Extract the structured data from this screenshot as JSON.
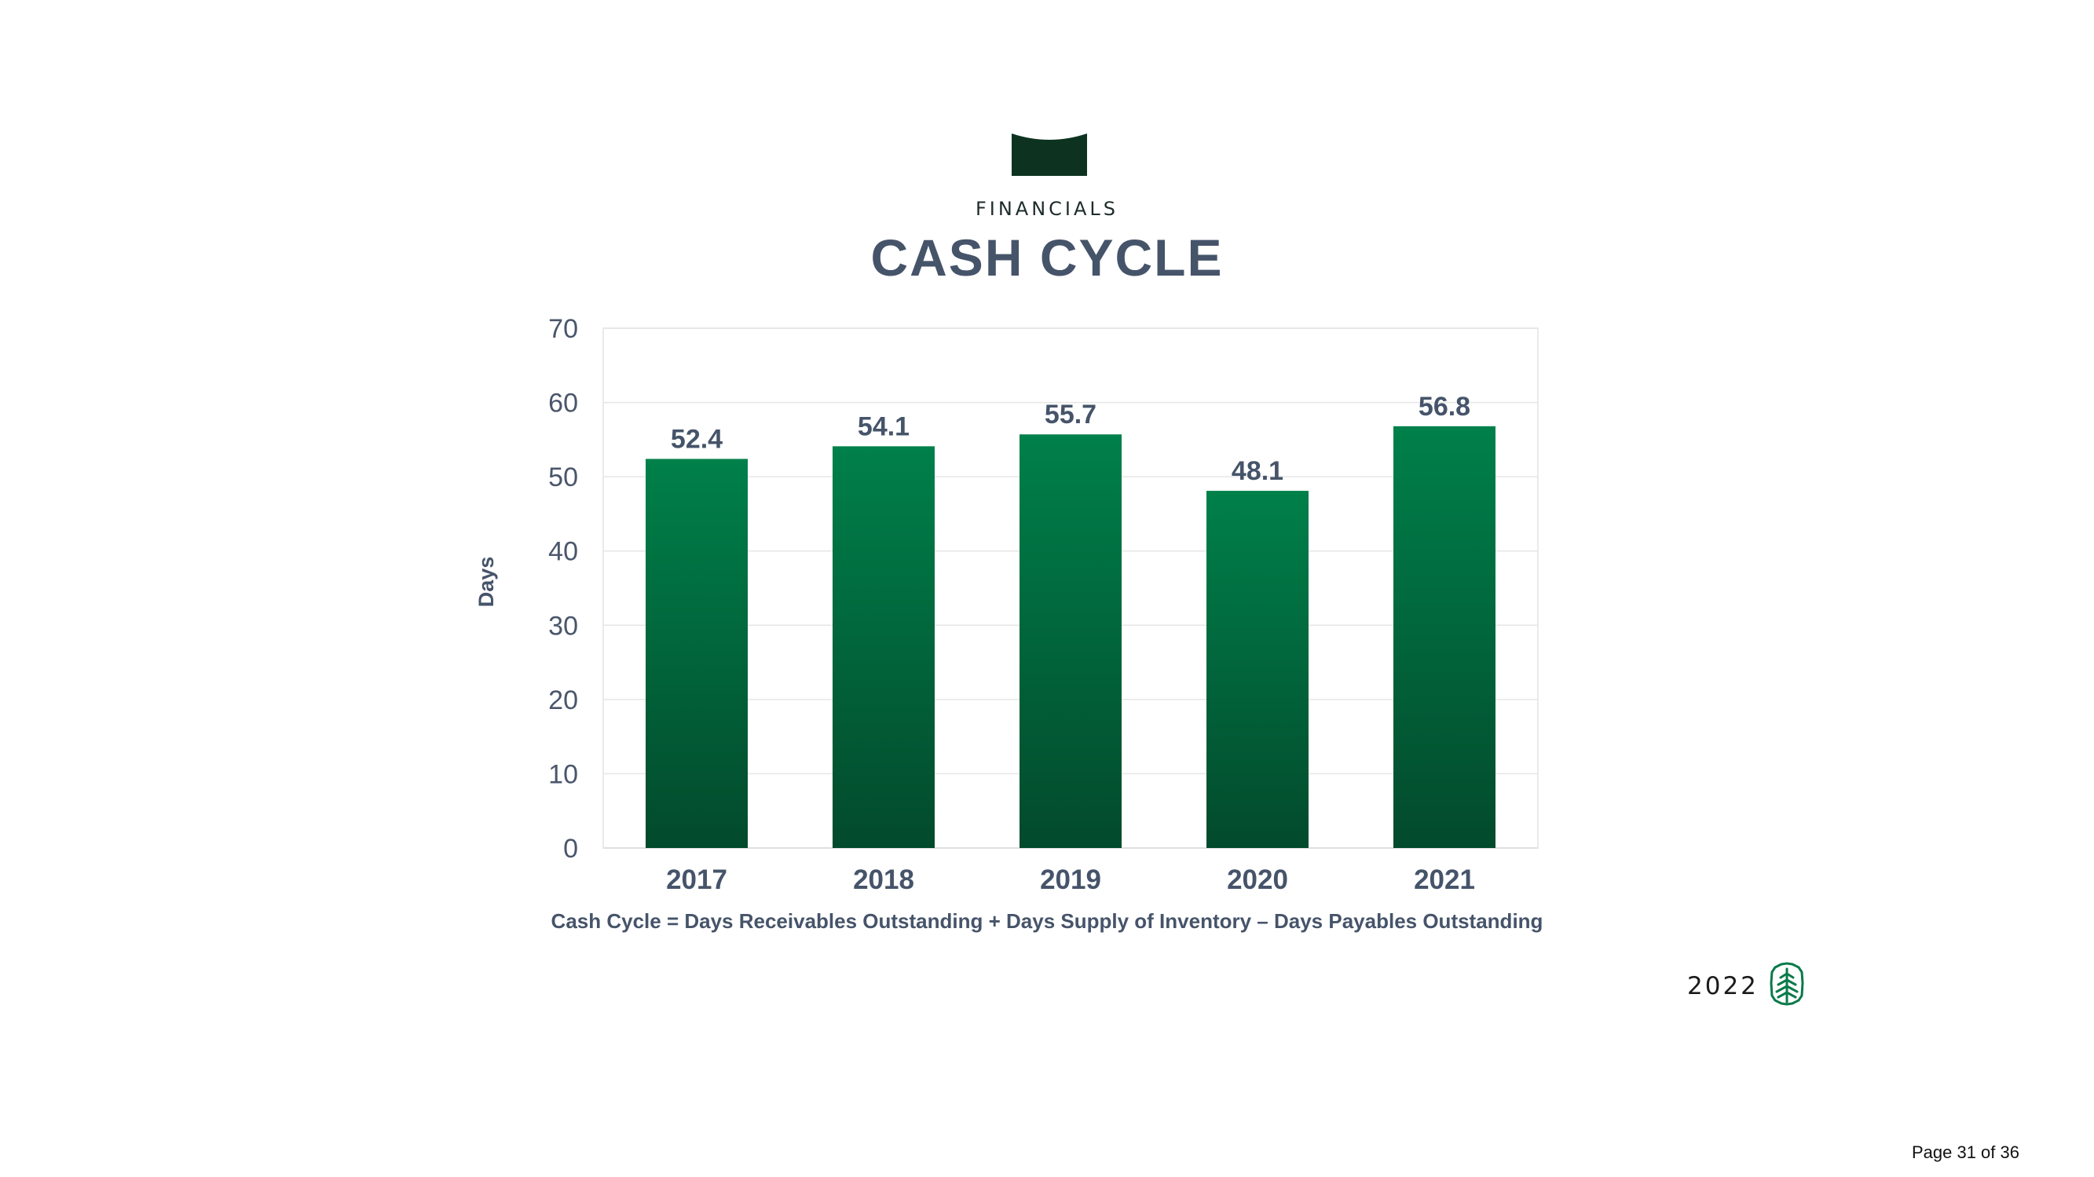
{
  "header": {
    "section_label": "FINANCIALS",
    "title": "CASH CYCLE",
    "emblem_icon": "tab-emblem-icon",
    "emblem_color": "#0d3320"
  },
  "chart_data": {
    "type": "bar",
    "categories": [
      "2017",
      "2018",
      "2019",
      "2020",
      "2021"
    ],
    "values": [
      52.4,
      54.1,
      55.7,
      48.1,
      56.8
    ],
    "value_labels": [
      "52.4",
      "54.1",
      "55.7",
      "48.1",
      "56.8"
    ],
    "ylabel": "Days",
    "xlabel": "",
    "ylim": [
      0,
      70
    ],
    "yticks": [
      "0",
      "10",
      "20",
      "30",
      "40",
      "50",
      "60",
      "70"
    ],
    "grid": true,
    "bar_color_top": "#00804a",
    "bar_color_bottom": "#024a2c"
  },
  "footnote": "Cash Cycle = Days Receivables Outstanding + Days Supply of Inventory – Days Payables Outstanding",
  "branding": {
    "year": "2022",
    "logo_icon": "tree-logo-icon",
    "logo_color": "#0a7a4a"
  },
  "page_number": "Page 31 of 36"
}
